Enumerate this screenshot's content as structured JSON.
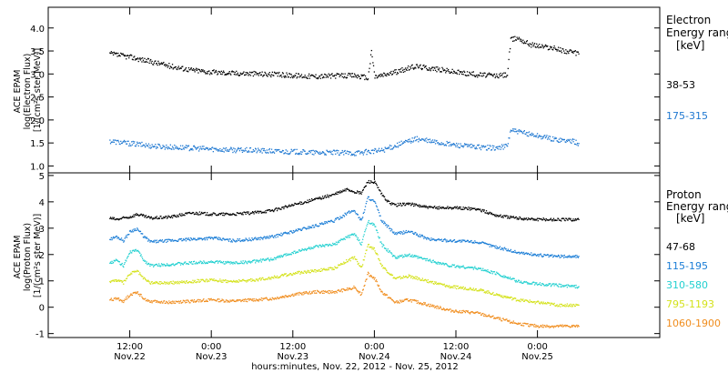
{
  "chart_data": [
    {
      "type": "scatter",
      "panel": "electron",
      "ylabel_lines": [
        "ACE EPAM",
        "log(Electron Flux)",
        "[1/(cm²s ster MeV)]"
      ],
      "ylim": [
        0.85,
        4.45
      ],
      "yticks": [
        1.0,
        1.5,
        2.0,
        2.5,
        3.0,
        3.5,
        4.0
      ],
      "ytick_labels": [
        "1.0",
        "1.5",
        "2.0",
        "2.5",
        "3.0",
        "3.5",
        "4.0"
      ],
      "legend_title_lines": [
        "Electron",
        "Energy ranges",
        "[keV]"
      ],
      "series": [
        {
          "name": "38-53",
          "color": "#000000",
          "x": [
            0,
            3,
            6,
            9,
            12,
            15,
            18,
            21,
            24,
            27,
            30,
            33,
            36,
            38,
            38.5,
            39,
            40,
            42,
            45,
            48,
            51,
            54,
            57,
            58.5,
            59,
            60,
            61,
            62,
            65,
            68,
            69
          ],
          "y": [
            3.45,
            3.38,
            3.28,
            3.18,
            3.1,
            3.05,
            3.03,
            3.02,
            3.0,
            2.98,
            2.96,
            2.97,
            2.98,
            2.92,
            3.5,
            2.95,
            2.98,
            3.05,
            3.18,
            3.12,
            3.05,
            3.0,
            2.97,
            3.0,
            3.75,
            3.8,
            3.72,
            3.65,
            3.58,
            3.48,
            3.45
          ]
        },
        {
          "name": "175-315",
          "color": "#1f78d1",
          "x": [
            0,
            3,
            6,
            9,
            12,
            15,
            18,
            21,
            24,
            27,
            30,
            33,
            36,
            38,
            40,
            42,
            44,
            45,
            47,
            50,
            54,
            57,
            58.5,
            59,
            60,
            62,
            65,
            68,
            69
          ],
          "y": [
            1.55,
            1.5,
            1.45,
            1.42,
            1.4,
            1.38,
            1.36,
            1.35,
            1.33,
            1.32,
            1.3,
            1.3,
            1.29,
            1.32,
            1.35,
            1.45,
            1.55,
            1.6,
            1.55,
            1.48,
            1.42,
            1.4,
            1.45,
            1.8,
            1.75,
            1.7,
            1.6,
            1.55,
            1.5
          ]
        }
      ]
    },
    {
      "type": "scatter",
      "panel": "proton",
      "ylabel_lines": [
        "ACE EPAM",
        "log(Proton Flux)",
        "[1/(cm²s ster MeV)]"
      ],
      "ylim": [
        -1.15,
        5.1
      ],
      "yticks": [
        -1,
        0,
        1,
        2,
        3,
        4,
        5
      ],
      "ytick_labels": [
        "-1",
        "0",
        "1",
        "2",
        "3",
        "4",
        "5"
      ],
      "legend_title_lines": [
        "Proton",
        "Energy ranges",
        "[keV]"
      ],
      "series": [
        {
          "name": "47-68",
          "color": "#000000",
          "x": [
            0,
            1,
            3,
            4,
            6,
            9,
            12,
            15,
            18,
            21,
            24,
            27,
            30,
            33,
            35,
            36,
            37,
            38,
            39,
            40,
            41,
            42,
            44,
            47,
            50,
            54,
            57,
            60,
            63,
            66,
            69
          ],
          "y": [
            3.4,
            3.35,
            3.45,
            3.55,
            3.4,
            3.45,
            3.6,
            3.55,
            3.55,
            3.6,
            3.7,
            3.9,
            4.1,
            4.3,
            4.5,
            4.4,
            4.35,
            4.8,
            4.75,
            4.3,
            4.0,
            3.9,
            3.95,
            3.8,
            3.8,
            3.75,
            3.5,
            3.4,
            3.35,
            3.35,
            3.35
          ]
        },
        {
          "name": "115-195",
          "color": "#1a7dd6",
          "x": [
            0,
            1,
            2,
            3,
            4,
            5,
            6,
            9,
            12,
            15,
            18,
            21,
            24,
            27,
            30,
            33,
            35,
            36,
            37,
            38,
            39,
            40,
            42,
            44,
            47,
            50,
            54,
            57,
            60,
            63,
            66,
            69
          ],
          "y": [
            2.6,
            2.7,
            2.55,
            2.9,
            3.0,
            2.7,
            2.5,
            2.55,
            2.6,
            2.65,
            2.55,
            2.6,
            2.7,
            2.9,
            3.1,
            3.3,
            3.6,
            3.7,
            3.3,
            4.2,
            4.0,
            3.3,
            2.8,
            2.9,
            2.6,
            2.55,
            2.5,
            2.3,
            2.1,
            2.0,
            1.95,
            1.95
          ]
        },
        {
          "name": "310-580",
          "color": "#22d0d0",
          "x": [
            0,
            1,
            2,
            3,
            4,
            5,
            6,
            9,
            12,
            15,
            18,
            21,
            24,
            27,
            30,
            33,
            35,
            36,
            37,
            38,
            39,
            40,
            42,
            44,
            47,
            50,
            54,
            57,
            60,
            63,
            66,
            69
          ],
          "y": [
            1.7,
            1.8,
            1.6,
            2.1,
            2.2,
            1.8,
            1.6,
            1.65,
            1.7,
            1.75,
            1.7,
            1.75,
            1.85,
            2.1,
            2.3,
            2.4,
            2.7,
            2.8,
            2.4,
            3.3,
            3.1,
            2.4,
            1.9,
            2.0,
            1.8,
            1.6,
            1.5,
            1.3,
            1.0,
            0.9,
            0.85,
            0.8
          ]
        },
        {
          "name": "795-1193",
          "color": "#d4e21a",
          "x": [
            0,
            1,
            2,
            3,
            4,
            5,
            6,
            9,
            12,
            15,
            18,
            21,
            24,
            27,
            30,
            33,
            35,
            36,
            37,
            38,
            39,
            40,
            42,
            44,
            47,
            50,
            54,
            57,
            60,
            63,
            66,
            69
          ],
          "y": [
            1.0,
            1.05,
            0.95,
            1.3,
            1.4,
            1.1,
            0.95,
            0.95,
            1.0,
            1.05,
            1.0,
            1.05,
            1.15,
            1.3,
            1.4,
            1.5,
            1.8,
            1.9,
            1.5,
            2.4,
            2.2,
            1.6,
            1.1,
            1.2,
            1.0,
            0.8,
            0.7,
            0.5,
            0.3,
            0.2,
            0.1,
            0.1
          ]
        },
        {
          "name": "1060-1900",
          "color": "#f08c1c",
          "x": [
            0,
            1,
            2,
            3,
            4,
            5,
            6,
            9,
            12,
            15,
            18,
            21,
            24,
            27,
            30,
            33,
            35,
            36,
            37,
            38,
            39,
            40,
            42,
            44,
            47,
            50,
            54,
            57,
            60,
            63,
            66,
            69
          ],
          "y": [
            0.3,
            0.35,
            0.25,
            0.5,
            0.6,
            0.35,
            0.25,
            0.2,
            0.25,
            0.3,
            0.25,
            0.3,
            0.35,
            0.5,
            0.6,
            0.6,
            0.7,
            0.8,
            0.5,
            1.3,
            1.1,
            0.6,
            0.2,
            0.3,
            0.1,
            -0.1,
            -0.2,
            -0.4,
            -0.6,
            -0.7,
            -0.7,
            -0.7
          ]
        }
      ]
    }
  ],
  "x_axis": {
    "title": "hours:minutes, Nov. 22, 2012 - Nov. 25, 2012",
    "unit": "hours",
    "xlim": [
      -9,
      81
    ],
    "ticks": [
      {
        "x": 3,
        "time": "12:00",
        "date": "Nov.22"
      },
      {
        "x": 15,
        "time": "0:00",
        "date": "Nov.23"
      },
      {
        "x": 27,
        "time": "12:00",
        "date": "Nov.23"
      },
      {
        "x": 39,
        "time": "0:00",
        "date": "Nov.24"
      },
      {
        "x": 51,
        "time": "12:00",
        "date": "Nov.24"
      },
      {
        "x": 63,
        "time": "0:00",
        "date": "Nov.25"
      }
    ]
  }
}
